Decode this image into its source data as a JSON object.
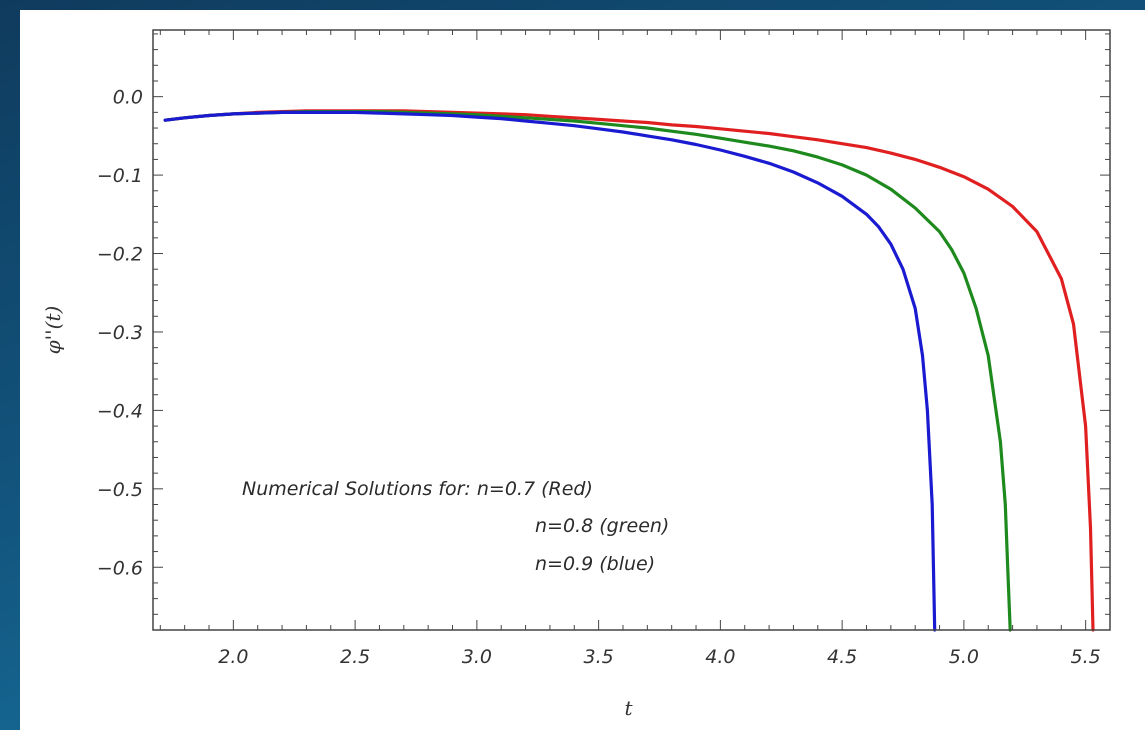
{
  "background": {
    "gradient_start": "#0f3b5e",
    "gradient_end": "#1a7fb0"
  },
  "chart_data": {
    "type": "line",
    "title": "",
    "xlabel": "t",
    "ylabel": "φ''(t)",
    "xlim": [
      1.67,
      5.6
    ],
    "ylim": [
      -0.68,
      0.085
    ],
    "xticks": [
      "2.0",
      "2.5",
      "3.0",
      "3.5",
      "4.0",
      "4.5",
      "5.0",
      "5.5"
    ],
    "xtick_values": [
      2.0,
      2.5,
      3.0,
      3.5,
      4.0,
      4.5,
      5.0,
      5.5
    ],
    "yticks": [
      "0.0",
      "−0.1",
      "−0.2",
      "−0.3",
      "−0.4",
      "−0.5",
      "−0.6"
    ],
    "ytick_values": [
      0.0,
      -0.1,
      -0.2,
      -0.3,
      -0.4,
      -0.5,
      -0.6
    ],
    "grid": false,
    "frame_ticks": true,
    "annotation_lines": [
      "Numerical Solutions for: n=0.7 (Red)",
      "n=0.8 (green)",
      "n=0.9 (blue)"
    ],
    "series": [
      {
        "color": "#e02020",
        "x": [
          1.72,
          1.8,
          1.9,
          2.0,
          2.1,
          2.2,
          2.3,
          2.4,
          2.5,
          2.6,
          2.7,
          2.8,
          2.9,
          3.0,
          3.1,
          3.2,
          3.3,
          3.4,
          3.5,
          3.6,
          3.7,
          3.8,
          3.9,
          4.0,
          4.1,
          4.2,
          4.3,
          4.4,
          4.5,
          4.6,
          4.7,
          4.8,
          4.9,
          5.0,
          5.1,
          5.2,
          5.3,
          5.4,
          5.45,
          5.5,
          5.52,
          5.53
        ],
        "y": [
          -0.03,
          -0.027,
          -0.024,
          -0.022,
          -0.02,
          -0.019,
          -0.018,
          -0.018,
          -0.018,
          -0.018,
          -0.018,
          -0.019,
          -0.02,
          -0.021,
          -0.022,
          -0.023,
          -0.025,
          -0.027,
          -0.029,
          -0.031,
          -0.033,
          -0.036,
          -0.038,
          -0.041,
          -0.044,
          -0.047,
          -0.051,
          -0.055,
          -0.06,
          -0.065,
          -0.072,
          -0.08,
          -0.09,
          -0.102,
          -0.118,
          -0.14,
          -0.172,
          -0.232,
          -0.29,
          -0.42,
          -0.55,
          -0.68
        ]
      },
      {
        "color": "#1e8a1e",
        "x": [
          1.72,
          1.8,
          1.9,
          2.0,
          2.1,
          2.2,
          2.3,
          2.4,
          2.5,
          2.6,
          2.7,
          2.8,
          2.9,
          3.0,
          3.1,
          3.2,
          3.3,
          3.4,
          3.5,
          3.6,
          3.7,
          3.8,
          3.9,
          4.0,
          4.1,
          4.2,
          4.3,
          4.4,
          4.5,
          4.6,
          4.7,
          4.8,
          4.9,
          4.95,
          5.0,
          5.05,
          5.1,
          5.15,
          5.17,
          5.18,
          5.19
        ],
        "y": [
          -0.03,
          -0.027,
          -0.024,
          -0.022,
          -0.021,
          -0.02,
          -0.019,
          -0.019,
          -0.019,
          -0.019,
          -0.02,
          -0.021,
          -0.022,
          -0.023,
          -0.025,
          -0.027,
          -0.029,
          -0.031,
          -0.034,
          -0.037,
          -0.04,
          -0.044,
          -0.048,
          -0.053,
          -0.058,
          -0.063,
          -0.069,
          -0.077,
          -0.087,
          -0.1,
          -0.118,
          -0.142,
          -0.172,
          -0.195,
          -0.225,
          -0.27,
          -0.33,
          -0.44,
          -0.52,
          -0.6,
          -0.68
        ]
      },
      {
        "color": "#1a1ad0",
        "x": [
          1.72,
          1.8,
          1.9,
          2.0,
          2.1,
          2.2,
          2.3,
          2.4,
          2.5,
          2.6,
          2.7,
          2.8,
          2.9,
          3.0,
          3.1,
          3.2,
          3.3,
          3.4,
          3.5,
          3.6,
          3.7,
          3.8,
          3.9,
          4.0,
          4.1,
          4.2,
          4.3,
          4.4,
          4.5,
          4.6,
          4.65,
          4.7,
          4.75,
          4.8,
          4.83,
          4.85,
          4.87,
          4.88
        ],
        "y": [
          -0.03,
          -0.027,
          -0.024,
          -0.022,
          -0.021,
          -0.02,
          -0.02,
          -0.02,
          -0.02,
          -0.021,
          -0.022,
          -0.023,
          -0.024,
          -0.026,
          -0.028,
          -0.031,
          -0.034,
          -0.037,
          -0.041,
          -0.045,
          -0.05,
          -0.055,
          -0.061,
          -0.068,
          -0.076,
          -0.085,
          -0.096,
          -0.11,
          -0.127,
          -0.15,
          -0.166,
          -0.188,
          -0.22,
          -0.27,
          -0.33,
          -0.4,
          -0.52,
          -0.68
        ]
      }
    ]
  }
}
